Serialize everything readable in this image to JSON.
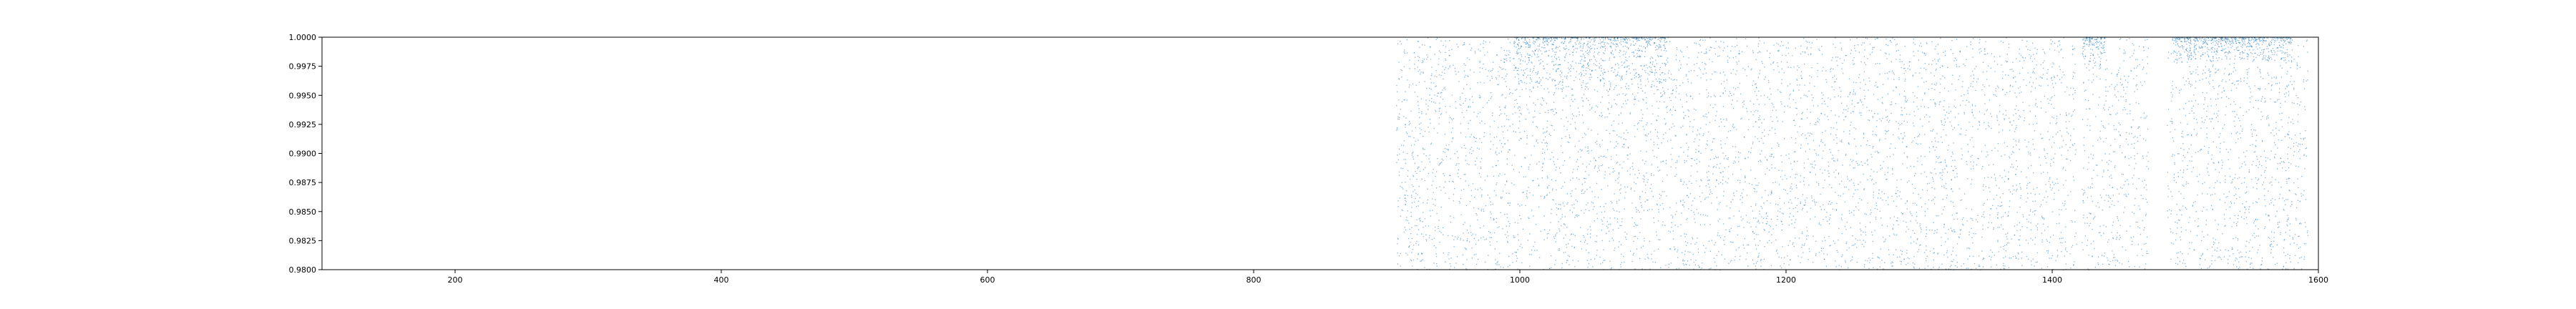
{
  "chart_data": {
    "type": "scatter",
    "title": "",
    "xlabel": "",
    "ylabel": "",
    "xlim": [
      100,
      1600
    ],
    "ylim": [
      0.98,
      1.0
    ],
    "xticks": [
      200,
      400,
      600,
      800,
      1000,
      1200,
      1400,
      1600
    ],
    "yticks": [
      0.98,
      0.9825,
      0.985,
      0.9875,
      0.99,
      0.9925,
      0.995,
      0.9975,
      1.0
    ],
    "xtick_labels": [
      "200",
      "400",
      "600",
      "800",
      "1000",
      "1200",
      "1400",
      "1600"
    ],
    "ytick_labels": [
      "0.9800",
      "0.9825",
      "0.9850",
      "0.9875",
      "0.9900",
      "0.9925",
      "0.9950",
      "0.9975",
      "1.0000"
    ],
    "grid": false,
    "series": [
      {
        "color": "#1f77b4",
        "x_range": [
          907,
          1592
        ],
        "gaps": [
          [
            1418,
            1422
          ],
          [
            1472,
            1486
          ]
        ],
        "dense_bands": [
          {
            "x": [
              995,
              1110
            ],
            "y": [
              0.9955,
              1.0
            ]
          },
          {
            "x": [
              1418,
              1440
            ],
            "y": [
              0.9975,
              1.0
            ]
          },
          {
            "x": [
              1490,
              1580
            ],
            "y": [
              0.998,
              1.0
            ]
          }
        ]
      }
    ]
  }
}
